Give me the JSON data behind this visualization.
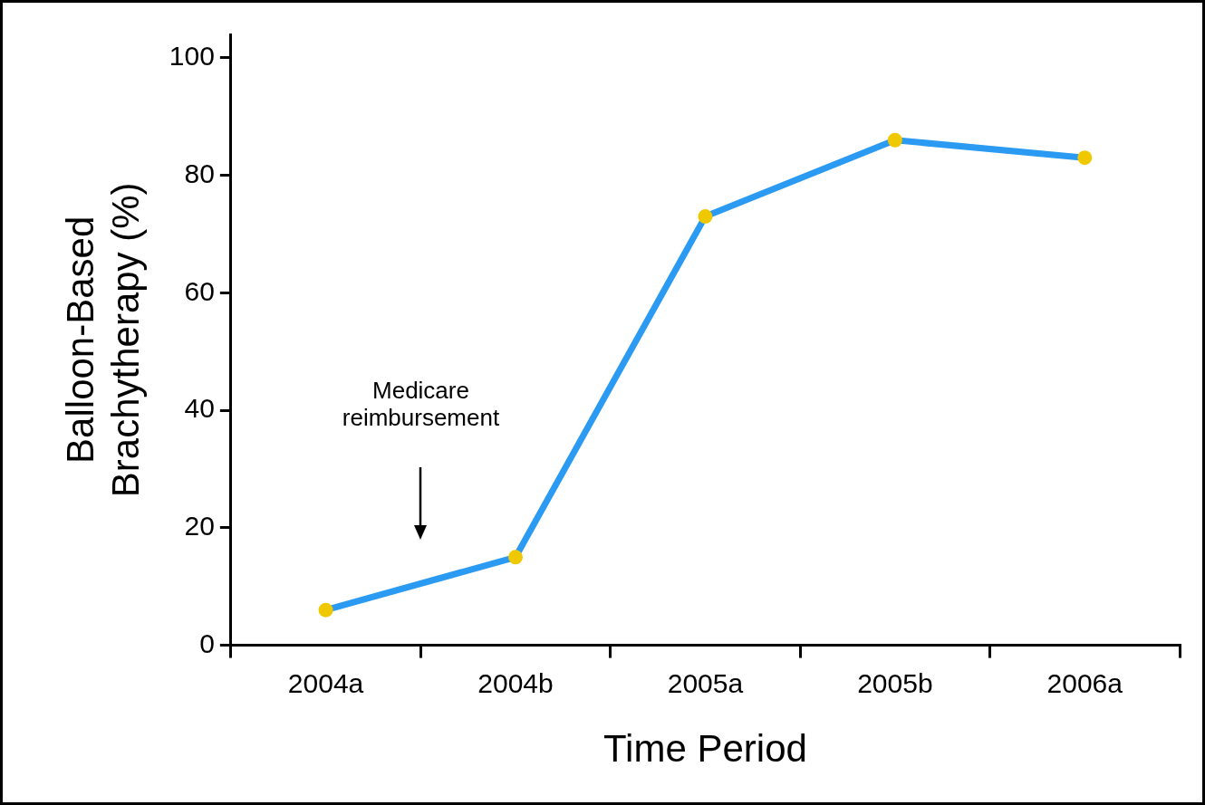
{
  "chart_data": {
    "type": "line",
    "xlabel": "Time Period",
    "ylabel": "Balloon-Based Brachytherapy (%)",
    "categories": [
      "2004a",
      "2004b",
      "2005a",
      "2005b",
      "2006a"
    ],
    "series": [
      {
        "color": "#2b9af3",
        "colors": [
          "#f0c800",
          "#f0c800",
          "#f0c800",
          "#f0c800",
          "#f0c800"
        ],
        "values": [
          6,
          15,
          73,
          86,
          83
        ]
      }
    ],
    "ylim": [
      0,
      104
    ],
    "yticks": [
      0,
      20,
      40,
      60,
      80,
      100
    ],
    "grid": false,
    "legend": false,
    "marker": "circle",
    "line_style": "solid",
    "annotations": [
      "Medicare reimbursement"
    ]
  }
}
